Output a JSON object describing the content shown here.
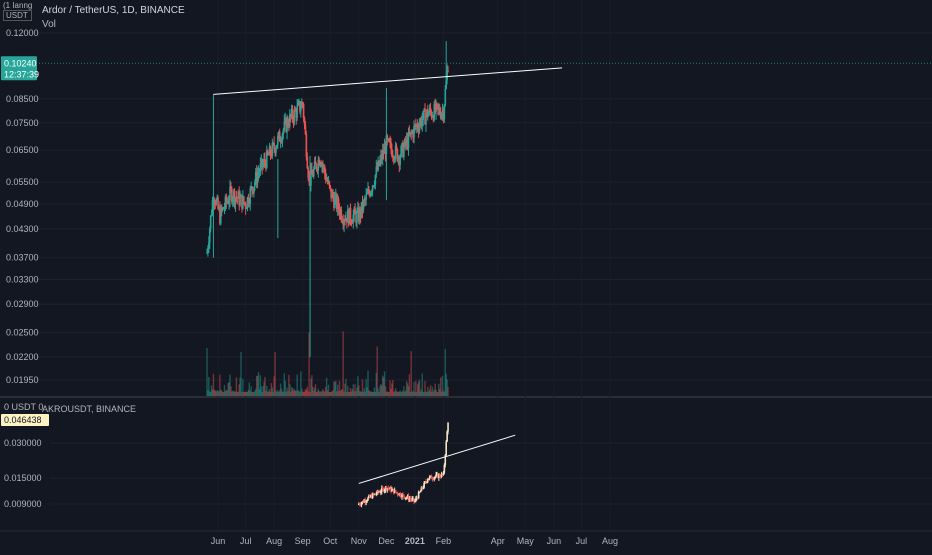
{
  "header": {
    "badge_top": "(1 Ianng",
    "badge_unit": "USDT",
    "symbol_line": "Ardor / TetherUS, 1D, BINANCE",
    "vol_label": "Vol"
  },
  "main_pane": {
    "y_ticks": [
      "0.12000",
      "0.08500",
      "0.07500",
      "0.06500",
      "0.05500",
      "0.04900",
      "0.04300",
      "0.03700",
      "0.03300",
      "0.02900",
      "0.02500",
      "0.02200",
      "0.01950"
    ],
    "price_label": "0.10240",
    "time_label": "12:37:39"
  },
  "lower_pane": {
    "badge": "0 USDT 0",
    "symbol_line": "AKROUSDT, BINANCE",
    "y_ticks": [
      "0.030000",
      "0.015000",
      "0.009000"
    ],
    "price_label": "0.046438"
  },
  "x_axis": {
    "labels": [
      "Jun",
      "Jul",
      "Aug",
      "Sep",
      "Oct",
      "Nov",
      "Dec",
      "2021",
      "Feb",
      "Apr",
      "May",
      "Jun",
      "Jul",
      "Aug"
    ]
  },
  "colors": {
    "background": "#131722",
    "up": "#26a69a",
    "down": "#ef5350",
    "akro_up": "#f5e6c8",
    "akro_down": "#ef5350",
    "trendline": "#ffffff",
    "price_badge": "#26a69a",
    "akro_badge": "#fff3c4"
  },
  "chart_data": [
    {
      "type": "candlestick",
      "title": "Ardor / TetherUS, 1D, BINANCE",
      "scale": "log",
      "y_ticks": [
        0.12,
        0.085,
        0.075,
        0.065,
        0.055,
        0.049,
        0.043,
        0.037,
        0.033,
        0.029,
        0.025,
        0.022,
        0.0195
      ],
      "last_price": 0.1024,
      "closes_approx": [
        {
          "date": "2020-05-20",
          "close": 0.038
        },
        {
          "date": "2020-05-27",
          "close": 0.052
        },
        {
          "date": "2020-06-03",
          "close": 0.046
        },
        {
          "date": "2020-06-15",
          "close": 0.052
        },
        {
          "date": "2020-07-01",
          "close": 0.049
        },
        {
          "date": "2020-07-15",
          "close": 0.058
        },
        {
          "date": "2020-08-01",
          "close": 0.066
        },
        {
          "date": "2020-08-15",
          "close": 0.075
        },
        {
          "date": "2020-09-01",
          "close": 0.083
        },
        {
          "date": "2020-09-08",
          "close": 0.055
        },
        {
          "date": "2020-09-20",
          "close": 0.063
        },
        {
          "date": "2020-10-01",
          "close": 0.052
        },
        {
          "date": "2020-10-15",
          "close": 0.046
        },
        {
          "date": "2020-11-01",
          "close": 0.046
        },
        {
          "date": "2020-11-15",
          "close": 0.054
        },
        {
          "date": "2020-12-01",
          "close": 0.067
        },
        {
          "date": "2020-12-15",
          "close": 0.063
        },
        {
          "date": "2021-01-01",
          "close": 0.073
        },
        {
          "date": "2021-01-15",
          "close": 0.079
        },
        {
          "date": "2021-02-01",
          "close": 0.08
        },
        {
          "date": "2021-02-06",
          "close": 0.1024
        }
      ],
      "trendline": [
        {
          "date": "2020-05-27",
          "value": 0.087
        },
        {
          "date": "2021-06-10",
          "value": 0.1
        }
      ]
    },
    {
      "type": "candlestick",
      "title": "AKROUSDT, BINANCE",
      "y_ticks": [
        0.03,
        0.015,
        0.009
      ],
      "last_price": 0.046438,
      "closes_approx": [
        {
          "date": "2020-11-01",
          "close": 0.009
        },
        {
          "date": "2020-11-15",
          "close": 0.0105
        },
        {
          "date": "2020-12-01",
          "close": 0.0125
        },
        {
          "date": "2020-12-15",
          "close": 0.011
        },
        {
          "date": "2021-01-01",
          "close": 0.0095
        },
        {
          "date": "2021-01-15",
          "close": 0.015
        },
        {
          "date": "2021-02-01",
          "close": 0.016
        },
        {
          "date": "2021-02-06",
          "close": 0.046
        }
      ],
      "trendline": [
        {
          "date": "2020-11-01",
          "value": 0.0135
        },
        {
          "date": "2021-04-20",
          "value": 0.035
        }
      ]
    }
  ]
}
